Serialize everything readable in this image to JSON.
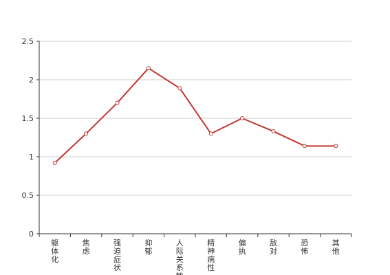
{
  "chart_data": {
    "type": "line",
    "title": "",
    "xlabel": "",
    "ylabel": "",
    "categories": [
      "躯体化",
      "焦虑",
      "强迫症状",
      "抑郁",
      "人际关系敏感",
      "精神病性",
      "偏执",
      "敌对",
      "恐怖",
      "其他"
    ],
    "series": [
      {
        "values": [
          0.92,
          1.3,
          1.7,
          2.15,
          1.89,
          1.3,
          1.5,
          1.33,
          1.14,
          1.14
        ]
      }
    ],
    "ylim": [
      0,
      2.5
    ],
    "yticks": [
      "0",
      "0.5",
      "1",
      "1.5",
      "2",
      "2.5"
    ],
    "grid": true,
    "legend": "none",
    "colors": {
      "line": "#c23531",
      "marker_fill": "#ffffff",
      "grid": "#cccccc",
      "axis": "#333333"
    }
  }
}
